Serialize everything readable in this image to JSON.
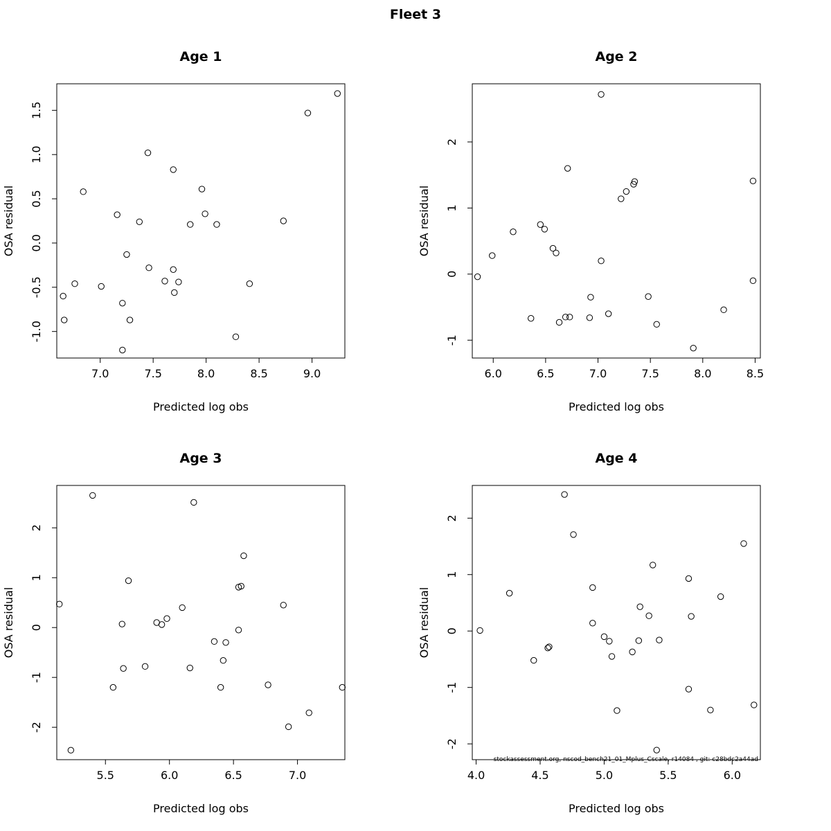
{
  "page": {
    "title": "Fleet 3",
    "footnote": "stockassessment.org, nscod_bench21_01_Mplus_Cscale, r14084 , git: c28bdc2a44ad"
  },
  "chart_data": [
    {
      "type": "scatter",
      "title": "Age 1",
      "xlabel": "Predicted log obs",
      "ylabel": "OSA residual",
      "xlim": [
        6.59,
        9.31
      ],
      "ylim": [
        -1.3,
        1.8
      ],
      "xticks": [
        7.0,
        7.5,
        8.0,
        8.5,
        9.0
      ],
      "xtick_labels": [
        "7.0",
        "7.5",
        "8.0",
        "8.5",
        "9.0"
      ],
      "yticks": [
        -1.0,
        -0.5,
        0.0,
        0.5,
        1.0,
        1.5
      ],
      "ytick_labels": [
        "-1.0",
        "-0.5",
        "0.0",
        "0.5",
        "1.0",
        "1.5"
      ],
      "x": [
        9.24,
        8.96,
        7.45,
        7.69,
        6.84,
        7.96,
        7.16,
        7.99,
        7.37,
        8.73,
        7.85,
        8.1,
        7.25,
        7.46,
        7.69,
        6.76,
        7.01,
        7.74,
        7.61,
        8.41,
        7.7,
        6.65,
        7.21,
        6.66,
        7.28,
        8.28,
        7.21
      ],
      "y": [
        1.69,
        1.47,
        1.02,
        0.83,
        0.58,
        0.61,
        0.32,
        0.33,
        0.24,
        0.25,
        0.21,
        0.21,
        -0.13,
        -0.28,
        -0.3,
        -0.46,
        -0.49,
        -0.44,
        -0.43,
        -0.46,
        -0.56,
        -0.6,
        -0.68,
        -0.87,
        -0.87,
        -1.06,
        -1.21
      ]
    },
    {
      "type": "scatter",
      "title": "Age 2",
      "xlabel": "Predicted log obs",
      "ylabel": "OSA residual",
      "xlim": [
        5.8,
        8.55
      ],
      "ylim": [
        -1.27,
        2.88
      ],
      "xticks": [
        6.0,
        6.5,
        7.0,
        7.5,
        8.0,
        8.5
      ],
      "xtick_labels": [
        "6.0",
        "6.5",
        "7.0",
        "7.5",
        "8.0",
        "8.5"
      ],
      "yticks": [
        -1,
        0,
        1,
        2
      ],
      "ytick_labels": [
        "-1",
        "0",
        "1",
        "2"
      ],
      "x": [
        7.03,
        6.71,
        7.35,
        7.34,
        7.27,
        7.22,
        8.48,
        6.45,
        6.49,
        6.19,
        6.57,
        6.6,
        5.99,
        7.03,
        5.85,
        8.48,
        6.93,
        7.48,
        8.2,
        7.1,
        6.69,
        6.73,
        6.92,
        6.36,
        6.63,
        7.56,
        7.91
      ],
      "y": [
        2.72,
        1.6,
        1.4,
        1.36,
        1.25,
        1.14,
        1.41,
        0.75,
        0.68,
        0.64,
        0.39,
        0.32,
        0.28,
        0.2,
        -0.04,
        -0.1,
        -0.35,
        -0.34,
        -0.54,
        -0.6,
        -0.65,
        -0.65,
        -0.66,
        -0.67,
        -0.73,
        -0.76,
        -1.12
      ]
    },
    {
      "type": "scatter",
      "title": "Age 3",
      "xlabel": "Predicted log obs",
      "ylabel": "OSA residual",
      "xlim": [
        5.12,
        7.37
      ],
      "ylim": [
        -2.65,
        2.85
      ],
      "xticks": [
        5.5,
        6.0,
        6.5,
        7.0
      ],
      "xtick_labels": [
        "5.5",
        "6.0",
        "6.5",
        "7.0"
      ],
      "yticks": [
        -2,
        -1,
        0,
        1,
        2
      ],
      "ytick_labels": [
        "-2",
        "-1",
        "0",
        "1",
        "2"
      ],
      "x": [
        5.4,
        6.19,
        6.58,
        5.68,
        6.54,
        6.56,
        5.14,
        6.89,
        6.1,
        5.98,
        5.9,
        5.94,
        5.63,
        6.54,
        6.35,
        6.44,
        6.42,
        5.64,
        5.81,
        6.16,
        5.56,
        6.4,
        6.77,
        7.35,
        7.09,
        6.93,
        5.23
      ],
      "y": [
        2.65,
        2.51,
        1.44,
        0.94,
        0.81,
        0.83,
        0.47,
        0.45,
        0.4,
        0.18,
        0.1,
        0.06,
        0.07,
        -0.05,
        -0.28,
        -0.3,
        -0.66,
        -0.82,
        -0.78,
        -0.81,
        -1.2,
        -1.2,
        -1.15,
        -1.2,
        -1.71,
        -1.99,
        -2.46
      ]
    },
    {
      "type": "scatter",
      "title": "Age 4",
      "xlabel": "Predicted log obs",
      "ylabel": "OSA residual",
      "xlim": [
        3.97,
        6.22
      ],
      "ylim": [
        -2.28,
        2.58
      ],
      "xticks": [
        4.0,
        4.5,
        5.0,
        5.5,
        6.0
      ],
      "xtick_labels": [
        "4.0",
        "4.5",
        "5.0",
        "5.5",
        "6.0"
      ],
      "yticks": [
        -2,
        -1,
        0,
        1,
        2
      ],
      "ytick_labels": [
        "-2",
        "-1",
        "0",
        "1",
        "2"
      ],
      "x": [
        4.69,
        4.76,
        6.09,
        5.38,
        5.66,
        4.91,
        4.26,
        5.91,
        5.28,
        5.68,
        5.35,
        4.03,
        4.91,
        5.0,
        5.04,
        5.27,
        5.43,
        4.56,
        4.57,
        5.22,
        5.06,
        4.45,
        5.66,
        5.83,
        5.1,
        6.17,
        5.41
      ],
      "y": [
        2.42,
        1.71,
        1.55,
        1.17,
        0.93,
        0.77,
        0.67,
        0.61,
        0.43,
        0.26,
        0.27,
        0.01,
        0.14,
        -0.1,
        -0.18,
        -0.17,
        -0.16,
        -0.3,
        -0.28,
        -0.37,
        -0.45,
        -0.52,
        -1.03,
        -1.4,
        -1.41,
        -1.31,
        -2.11
      ]
    }
  ]
}
